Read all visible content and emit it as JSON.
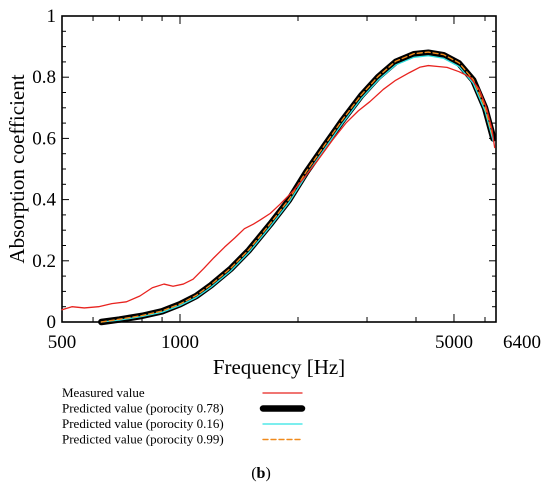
{
  "chart_data": {
    "type": "line",
    "title": "",
    "xlabel": "Frequency [Hz]",
    "ylabel": "Absorption coefficient",
    "x_scale": "log",
    "xlim": [
      500,
      6400
    ],
    "ylim": [
      0,
      1
    ],
    "x_ticks": [
      500,
      1000,
      5000,
      6400
    ],
    "x_tick_labels": [
      "500",
      "1000",
      "5000",
      "6400"
    ],
    "y_ticks": [
      0,
      0.2,
      0.4,
      0.6,
      0.8,
      1
    ],
    "y_tick_labels": [
      "0",
      "0.2",
      "0.4",
      "0.6",
      "0.8",
      "1"
    ],
    "grid": false,
    "legend_position": "bottom-left",
    "panel_label": "b",
    "series": [
      {
        "name": "Measured value",
        "color": "#e8231f",
        "style": "solid",
        "points": [
          [
            500,
            0.04
          ],
          [
            530,
            0.05
          ],
          [
            570,
            0.046
          ],
          [
            620,
            0.05
          ],
          [
            670,
            0.06
          ],
          [
            730,
            0.066
          ],
          [
            790,
            0.085
          ],
          [
            850,
            0.112
          ],
          [
            910,
            0.124
          ],
          [
            960,
            0.117
          ],
          [
            1020,
            0.124
          ],
          [
            1080,
            0.14
          ],
          [
            1150,
            0.175
          ],
          [
            1220,
            0.21
          ],
          [
            1300,
            0.245
          ],
          [
            1380,
            0.275
          ],
          [
            1460,
            0.305
          ],
          [
            1540,
            0.32
          ],
          [
            1600,
            0.333
          ],
          [
            1700,
            0.355
          ],
          [
            1800,
            0.385
          ],
          [
            1950,
            0.43
          ],
          [
            2100,
            0.48
          ],
          [
            2250,
            0.53
          ],
          [
            2450,
            0.595
          ],
          [
            2650,
            0.65
          ],
          [
            2850,
            0.69
          ],
          [
            3050,
            0.72
          ],
          [
            3300,
            0.76
          ],
          [
            3550,
            0.79
          ],
          [
            3850,
            0.815
          ],
          [
            4100,
            0.833
          ],
          [
            4300,
            0.838
          ],
          [
            4550,
            0.835
          ],
          [
            4800,
            0.832
          ],
          [
            5150,
            0.818
          ],
          [
            5500,
            0.8
          ],
          [
            5800,
            0.76
          ],
          [
            6050,
            0.7
          ],
          [
            6250,
            0.63
          ],
          [
            6350,
            0.57
          ]
        ]
      },
      {
        "name": "Predicted value (porocity 0.78)",
        "color": "#000000",
        "style": "bold",
        "points": [
          [
            630,
            0.0
          ],
          [
            700,
            0.008
          ],
          [
            800,
            0.02
          ],
          [
            900,
            0.035
          ],
          [
            1000,
            0.058
          ],
          [
            1100,
            0.085
          ],
          [
            1200,
            0.12
          ],
          [
            1350,
            0.175
          ],
          [
            1500,
            0.235
          ],
          [
            1700,
            0.32
          ],
          [
            1900,
            0.4
          ],
          [
            2100,
            0.49
          ],
          [
            2350,
            0.58
          ],
          [
            2600,
            0.66
          ],
          [
            2900,
            0.74
          ],
          [
            3200,
            0.8
          ],
          [
            3550,
            0.85
          ],
          [
            3950,
            0.875
          ],
          [
            4300,
            0.88
          ],
          [
            4700,
            0.872
          ],
          [
            5150,
            0.845
          ],
          [
            5600,
            0.79
          ],
          [
            6000,
            0.7
          ],
          [
            6300,
            0.6
          ]
        ]
      },
      {
        "name": "Predicted value (porocity 0.16)",
        "color": "#2ee4e4",
        "style": "solid",
        "points": [
          [
            630,
            0.0
          ],
          [
            700,
            0.006
          ],
          [
            800,
            0.018
          ],
          [
            900,
            0.032
          ],
          [
            1000,
            0.054
          ],
          [
            1100,
            0.08
          ],
          [
            1200,
            0.114
          ],
          [
            1350,
            0.168
          ],
          [
            1500,
            0.228
          ],
          [
            1700,
            0.312
          ],
          [
            1900,
            0.392
          ],
          [
            2100,
            0.48
          ],
          [
            2350,
            0.57
          ],
          [
            2600,
            0.65
          ],
          [
            2900,
            0.73
          ],
          [
            3200,
            0.79
          ],
          [
            3550,
            0.84
          ],
          [
            3950,
            0.865
          ],
          [
            4300,
            0.87
          ],
          [
            4700,
            0.862
          ],
          [
            5150,
            0.835
          ],
          [
            5600,
            0.78
          ],
          [
            6000,
            0.69
          ],
          [
            6300,
            0.59
          ]
        ]
      },
      {
        "name": "Predicted value (porocity 0.99)",
        "color": "#f08a1c",
        "style": "dashed",
        "points": [
          [
            630,
            0.0
          ],
          [
            700,
            0.009
          ],
          [
            800,
            0.021
          ],
          [
            900,
            0.036
          ],
          [
            1000,
            0.059
          ],
          [
            1100,
            0.087
          ],
          [
            1200,
            0.122
          ],
          [
            1350,
            0.177
          ],
          [
            1500,
            0.237
          ],
          [
            1700,
            0.322
          ],
          [
            1900,
            0.402
          ],
          [
            2100,
            0.492
          ],
          [
            2350,
            0.582
          ],
          [
            2600,
            0.662
          ],
          [
            2900,
            0.742
          ],
          [
            3200,
            0.802
          ],
          [
            3550,
            0.852
          ],
          [
            3950,
            0.877
          ],
          [
            4300,
            0.882
          ],
          [
            4700,
            0.874
          ],
          [
            5150,
            0.847
          ],
          [
            5600,
            0.792
          ],
          [
            6000,
            0.702
          ],
          [
            6300,
            0.602
          ]
        ]
      }
    ]
  }
}
